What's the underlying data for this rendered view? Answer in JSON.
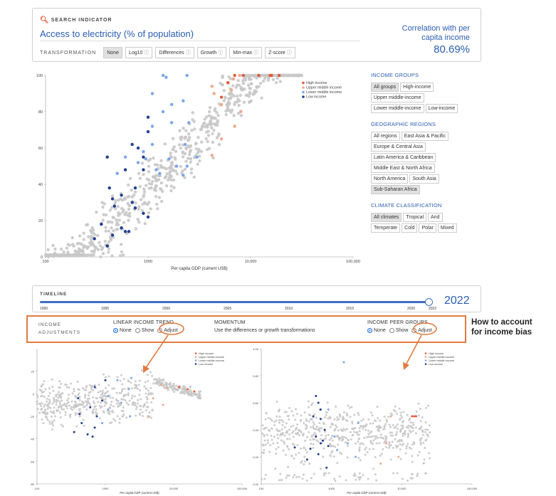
{
  "search": {
    "label": "SEARCH INDICATOR",
    "title": "Access to electricity (% of population)",
    "transformation_label": "TRANSFORMATION",
    "transformations": [
      {
        "label": "None",
        "active": true,
        "info": false
      },
      {
        "label": "Log10",
        "active": false,
        "info": true
      },
      {
        "label": "Differences",
        "active": false,
        "info": true
      },
      {
        "label": "Growth",
        "active": false,
        "info": true
      },
      {
        "label": "Min-max",
        "active": false,
        "info": true
      },
      {
        "label": "Z-score",
        "active": false,
        "info": true
      }
    ],
    "correlation_label": "Correlation with per capita income",
    "correlation_value": "80.69%"
  },
  "sidebar": {
    "income_groups": {
      "heading": "INCOME GROUPS",
      "options": [
        {
          "label": "All groups",
          "active": true
        },
        {
          "label": "High-income",
          "active": false
        },
        {
          "label": "Upper middle-income",
          "active": false
        },
        {
          "label": "Lower middle-income",
          "active": false
        },
        {
          "label": "Low-income",
          "active": false
        }
      ]
    },
    "regions": {
      "heading": "GEOGRAPHIC REGIONS",
      "options": [
        {
          "label": "All regions",
          "active": false
        },
        {
          "label": "East Asia & Pacific",
          "active": false
        },
        {
          "label": "Europe & Central Asia",
          "active": false
        },
        {
          "label": "Latin America & Caribbean",
          "active": false
        },
        {
          "label": "Middle East & North Africa",
          "active": false
        },
        {
          "label": "North America",
          "active": false
        },
        {
          "label": "South Asia",
          "active": false
        },
        {
          "label": "Sub-Saharan Africa",
          "active": true
        }
      ]
    },
    "climate": {
      "heading": "CLIMATE CLASSIFICATION",
      "options": [
        {
          "label": "All climates",
          "active": true
        },
        {
          "label": "Tropical",
          "active": false
        },
        {
          "label": "Arid",
          "active": false
        },
        {
          "label": "Temperate",
          "active": false
        },
        {
          "label": "Cold",
          "active": false
        },
        {
          "label": "Polar",
          "active": false
        },
        {
          "label": "Mixed",
          "active": false
        }
      ]
    }
  },
  "timeline": {
    "label": "TIMELINE",
    "ticks": [
      "1990",
      "1995",
      "2000",
      "2005",
      "2010",
      "2015",
      "2020",
      "2022"
    ],
    "selected_year": "2022"
  },
  "income_adjustments": {
    "label_line1": "INCOME",
    "label_line2": "ADJUSTMENTS",
    "linear": {
      "heading": "LINEAR INCOME TREND",
      "options": [
        "None",
        "Show",
        "Adjust"
      ],
      "selected": "None"
    },
    "momentum": {
      "heading": "MOMENTUM",
      "text": "Use the differences or growth transformations"
    },
    "peer": {
      "heading": "INCOME PEER GROUPS",
      "options": [
        "None",
        "Show",
        "Adjust"
      ],
      "selected": "None"
    }
  },
  "annotation": {
    "line1": "How to account",
    "line2": "for income bias"
  },
  "colors": {
    "high": "#e05a3a",
    "upper_middle": "#f0a98c",
    "lower_middle": "#7aa6ea",
    "low": "#1f3f8f",
    "other": "#c8c8c8",
    "accent": "#2a5db0",
    "highlight_box": "#e07b3f"
  },
  "chart_data": [
    {
      "type": "scatter",
      "name": "main",
      "title": "",
      "xlabel": "Per capita GDP (current US$)",
      "ylabel": "",
      "x_scale": "log",
      "xlim": [
        100,
        100000
      ],
      "ylim": [
        0,
        100
      ],
      "x_ticks": [
        "100",
        "1000",
        "10,000",
        "100,000"
      ],
      "y_ticks": [
        "0",
        "20",
        "40",
        "60",
        "80",
        "100"
      ],
      "legend": [
        "High income",
        "Upper middle income",
        "Lower middle income",
        "Low income"
      ],
      "legend_position": "top-right",
      "series": [
        {
          "name": "High income",
          "points": [
            [
              19000,
              100
            ],
            [
              16000,
              100
            ],
            [
              15500,
              100
            ],
            [
              12000,
              100
            ],
            [
              8500,
              100
            ],
            [
              7000,
              100
            ],
            [
              5200,
              88
            ],
            [
              6000,
              96
            ]
          ]
        },
        {
          "name": "Upper middle income",
          "points": [
            [
              7800,
              100
            ],
            [
              6800,
              98
            ],
            [
              4200,
              94
            ],
            [
              6500,
              92
            ],
            [
              4400,
              90
            ],
            [
              5200,
              84
            ],
            [
              8000,
              80
            ],
            [
              7000,
              72
            ],
            [
              4200,
              56
            ],
            [
              5200,
              65
            ]
          ]
        },
        {
          "name": "Lower middle income",
          "points": [
            [
              2400,
              100
            ],
            [
              1400,
              100
            ],
            [
              1500,
              99
            ],
            [
              1100,
              90
            ],
            [
              2200,
              86
            ],
            [
              1700,
              84
            ],
            [
              1400,
              80
            ],
            [
              2500,
              74
            ],
            [
              1700,
              74
            ],
            [
              1100,
              72
            ],
            [
              2300,
              62
            ],
            [
              1100,
              62
            ],
            [
              900,
              58
            ],
            [
              1600,
              54
            ],
            [
              3000,
              55
            ],
            [
              1900,
              50
            ],
            [
              2400,
              50
            ],
            [
              1200,
              48
            ],
            [
              1300,
              46
            ],
            [
              600,
              55
            ],
            [
              950,
              54
            ],
            [
              2200,
              45
            ],
            [
              800,
              52
            ],
            [
              500,
              46
            ]
          ]
        },
        {
          "name": "Low income",
          "points": [
            [
              1000,
              77
            ],
            [
              1000,
              69
            ],
            [
              700,
              62
            ],
            [
              800,
              60
            ],
            [
              400,
              55
            ],
            [
              900,
              55
            ],
            [
              600,
              48
            ],
            [
              900,
              48
            ],
            [
              420,
              38
            ],
            [
              750,
              38
            ],
            [
              550,
              34
            ],
            [
              450,
              32
            ],
            [
              700,
              30
            ],
            [
              470,
              28
            ],
            [
              750,
              27
            ],
            [
              900,
              24
            ],
            [
              1000,
              22
            ],
            [
              350,
              18
            ],
            [
              550,
              16
            ],
            [
              650,
              14
            ],
            [
              600,
              14
            ],
            [
              450,
              12
            ],
            [
              300,
              10
            ],
            [
              400,
              6
            ]
          ]
        }
      ]
    },
    {
      "type": "scatter",
      "name": "linear-trend-adjusted",
      "title": "",
      "xlabel": "Per capita GDP (current US$)",
      "ylabel": "",
      "x_scale": "log",
      "xlim": [
        100,
        100000
      ],
      "ylim": [
        -80,
        40
      ],
      "x_ticks": [
        "100",
        "1000",
        "10,000",
        "100,000"
      ],
      "y_ticks": [
        "-80",
        "-60",
        "-40",
        "-20",
        "0",
        "20"
      ],
      "legend": [
        "High income",
        "Upper middle income",
        "Lower middle income",
        "Low income"
      ],
      "legend_position": "top-right",
      "series": [
        {
          "name": "High income",
          "points": [
            [
              20000,
              2
            ],
            [
              16000,
              4
            ],
            [
              12000,
              6
            ]
          ]
        },
        {
          "name": "Upper middle income",
          "points": [
            [
              8000,
              5
            ],
            [
              6500,
              8
            ],
            [
              5000,
              -4
            ],
            [
              7000,
              -10
            ],
            [
              4200,
              -20
            ]
          ]
        },
        {
          "name": "Lower middle income",
          "points": [
            [
              2400,
              14
            ],
            [
              1500,
              12
            ],
            [
              2200,
              4
            ],
            [
              1100,
              -2
            ],
            [
              1700,
              -8
            ],
            [
              1100,
              -14
            ],
            [
              2300,
              -20
            ],
            [
              900,
              -26
            ]
          ]
        },
        {
          "name": "Low income",
          "points": [
            [
              1000,
              12
            ],
            [
              700,
              6
            ],
            [
              400,
              -4
            ],
            [
              900,
              -6
            ],
            [
              600,
              -12
            ],
            [
              420,
              -18
            ],
            [
              750,
              -20
            ],
            [
              450,
              -26
            ],
            [
              700,
              -30
            ],
            [
              350,
              -34
            ],
            [
              550,
              -36
            ],
            [
              650,
              -38
            ]
          ]
        }
      ]
    },
    {
      "type": "scatter",
      "name": "peer-group-adjusted",
      "title": "",
      "xlabel": "Per capita GDP (current US$)",
      "ylabel": "",
      "x_scale": "log",
      "xlim": [
        100,
        100000
      ],
      "ylim": [
        0,
        1
      ],
      "x_ticks": [
        "100",
        "1000",
        "10,000",
        "100,000"
      ],
      "y_ticks": [
        "0.00",
        "0.20",
        "0.40",
        "0.60",
        "0.80",
        "1.00"
      ],
      "legend": [
        "High income",
        "Upper middle income",
        "Lower middle income",
        "Low income"
      ],
      "legend_position": "top-right",
      "series": [
        {
          "name": "High income",
          "points": [
            [
              16000,
              0.5
            ],
            [
              15000,
              0.5
            ],
            [
              14000,
              0.5
            ]
          ]
        },
        {
          "name": "Upper middle income",
          "points": [
            [
              7000,
              0.5
            ],
            [
              6000,
              0.3
            ],
            [
              9000,
              0.2
            ],
            [
              5000,
              0.15
            ]
          ]
        },
        {
          "name": "Lower middle income",
          "points": [
            [
              2400,
              0.45
            ],
            [
              1500,
              0.9
            ],
            [
              1100,
              0.35
            ],
            [
              1700,
              0.3
            ],
            [
              2200,
              0.2
            ],
            [
              1200,
              0.25
            ],
            [
              900,
              0.55
            ]
          ]
        },
        {
          "name": "Low income",
          "points": [
            [
              600,
              0.65
            ],
            [
              650,
              0.6
            ],
            [
              700,
              0.55
            ],
            [
              550,
              0.5
            ],
            [
              700,
              0.48
            ],
            [
              800,
              0.4
            ],
            [
              600,
              0.35
            ],
            [
              750,
              0.32
            ],
            [
              700,
              0.3
            ],
            [
              900,
              0.28
            ],
            [
              500,
              0.26
            ],
            [
              650,
              0.22
            ],
            [
              300,
              0.27
            ],
            [
              450,
              0.18
            ],
            [
              850,
              0.12
            ]
          ]
        }
      ]
    }
  ]
}
